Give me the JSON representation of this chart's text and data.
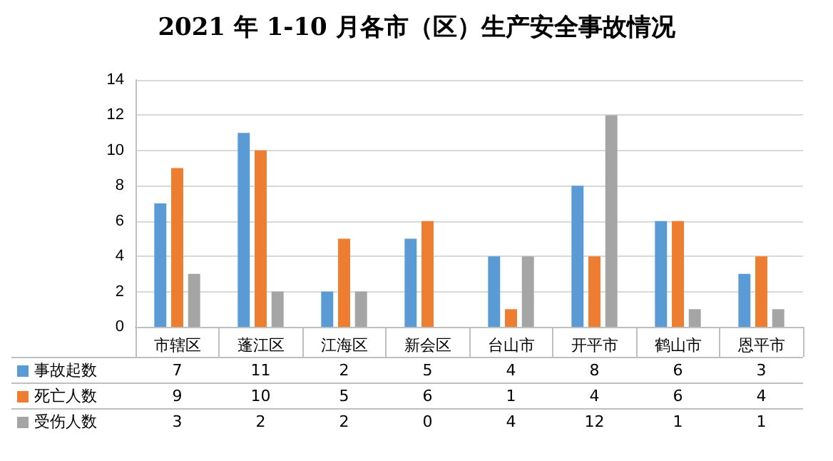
{
  "chart_data": {
    "type": "bar",
    "title": "2021 年 1-10 月各市（区）生产安全事故情况",
    "categories": [
      "市辖区",
      "蓬江区",
      "江海区",
      "新会区",
      "台山市",
      "开平市",
      "鹤山市",
      "恩平市"
    ],
    "series": [
      {
        "name": "事故起数",
        "color": "#5b9bd5",
        "values": [
          7,
          11,
          2,
          5,
          4,
          8,
          6,
          3
        ]
      },
      {
        "name": "死亡人数",
        "color": "#ed7d31",
        "values": [
          9,
          10,
          5,
          6,
          1,
          4,
          6,
          4
        ]
      },
      {
        "name": "受伤人数",
        "color": "#a5a5a5",
        "values": [
          3,
          2,
          2,
          0,
          4,
          12,
          1,
          1
        ]
      }
    ],
    "ylim": [
      0,
      14
    ],
    "yticks": [
      0,
      2,
      4,
      6,
      8,
      10,
      12,
      14
    ],
    "grid": "y",
    "legend": "bottom",
    "data_labels": true
  }
}
